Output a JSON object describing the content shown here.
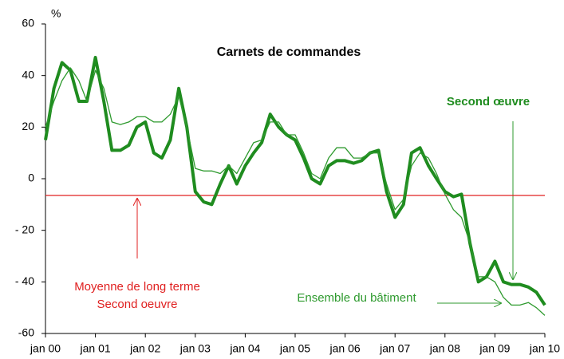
{
  "chart_data": {
    "type": "line",
    "title": "Carnets de commandes",
    "y_unit": "%",
    "x": [
      2000,
      2000.17,
      2000.33,
      2000.5,
      2000.67,
      2000.83,
      2001,
      2001.17,
      2001.33,
      2001.5,
      2001.67,
      2001.83,
      2002,
      2002.17,
      2002.33,
      2002.5,
      2002.67,
      2002.83,
      2003,
      2003.17,
      2003.33,
      2003.5,
      2003.67,
      2003.83,
      2004,
      2004.17,
      2004.33,
      2004.5,
      2004.67,
      2004.83,
      2005,
      2005.17,
      2005.33,
      2005.5,
      2005.67,
      2005.83,
      2006,
      2006.17,
      2006.33,
      2006.5,
      2006.67,
      2006.83,
      2007,
      2007.17,
      2007.33,
      2007.5,
      2007.67,
      2007.83,
      2008,
      2008.17,
      2008.33,
      2008.5,
      2008.67,
      2008.83,
      2009,
      2009.17,
      2009.33,
      2009.5,
      2009.67,
      2009.83,
      2010
    ],
    "series": [
      {
        "name": "Second  œuvre",
        "color": "#1f8c1f",
        "width": 4,
        "values": [
          15,
          35,
          45,
          42,
          30,
          30,
          47,
          30,
          11,
          11,
          13,
          20,
          22,
          10,
          8,
          15,
          35,
          20,
          -5,
          -9,
          -10,
          -2,
          5,
          -2,
          5,
          10,
          14,
          25,
          20,
          17,
          15,
          8,
          0,
          -2,
          5,
          7,
          7,
          6,
          7,
          10,
          11,
          -5,
          -15,
          -10,
          10,
          12,
          5,
          0,
          -5,
          -7,
          -6,
          -25,
          -40,
          -38,
          -32,
          -40,
          -41,
          -41,
          -42,
          -44,
          -49
        ]
      },
      {
        "name": "Ensemble du bâtiment",
        "color": "#2e9a2e",
        "width": 1.3,
        "values": [
          20,
          30,
          38,
          43,
          38,
          30,
          42,
          35,
          22,
          21,
          22,
          24,
          24,
          22,
          22,
          25,
          32,
          20,
          4,
          3,
          3,
          2,
          5,
          2,
          8,
          14,
          15,
          22,
          22,
          17,
          17,
          10,
          2,
          0,
          8,
          12,
          12,
          8,
          8,
          10,
          10,
          -2,
          -12,
          -8,
          5,
          10,
          8,
          2,
          -6,
          -12,
          -15,
          -25,
          -38,
          -38,
          -40,
          -46,
          -49,
          -49,
          -48,
          -50,
          -53
        ]
      }
    ],
    "reference_line": {
      "value": -6.5,
      "color": "#e02020",
      "label": [
        "Moyenne de long terme",
        "Second oeuvre"
      ]
    },
    "xlim": [
      2000,
      2010
    ],
    "xticks": [
      {
        "value": 2000,
        "label": "jan 00"
      },
      {
        "value": 2001,
        "label": "jan 01"
      },
      {
        "value": 2002,
        "label": "jan 02"
      },
      {
        "value": 2003,
        "label": "jan 03"
      },
      {
        "value": 2004,
        "label": "jan 04"
      },
      {
        "value": 2005,
        "label": "jan 05"
      },
      {
        "value": 2006,
        "label": "jan 06"
      },
      {
        "value": 2007,
        "label": "jan 07"
      },
      {
        "value": 2008,
        "label": "jan 08"
      },
      {
        "value": 2009,
        "label": "jan 09"
      },
      {
        "value": 2010,
        "label": "jan 10"
      }
    ],
    "ylim": [
      -60,
      60
    ],
    "yticks": [
      {
        "value": -60,
        "label": "-60"
      },
      {
        "value": -40,
        "label": "- 40"
      },
      {
        "value": -20,
        "label": "- 20"
      },
      0,
      20,
      40,
      60
    ]
  }
}
